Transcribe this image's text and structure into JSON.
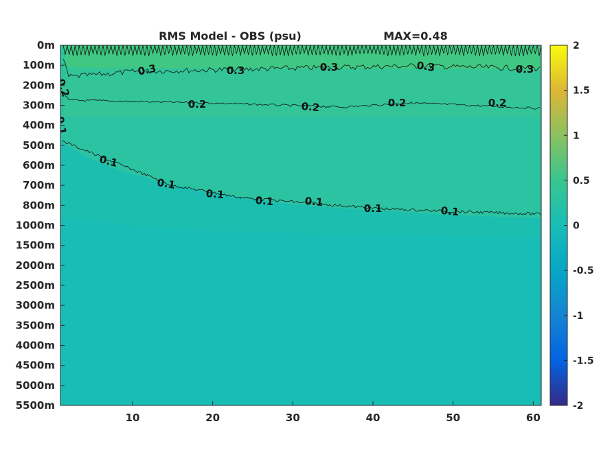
{
  "chart_data": {
    "type": "heatmap",
    "title": "RMS Model - OBS (psu)",
    "subtitle": "MAX=0.48",
    "xlabel": "",
    "ylabel": "",
    "x_ticks": [
      10,
      20,
      30,
      40,
      50,
      60
    ],
    "xlim": [
      1,
      61
    ],
    "y_ticks": [
      "0m",
      "100m",
      "200m",
      "300m",
      "400m",
      "500m",
      "600m",
      "700m",
      "800m",
      "1000m",
      "1500m",
      "2000m",
      "2500m",
      "3000m",
      "3500m",
      "4000m",
      "4500m",
      "5000m",
      "5500m"
    ],
    "colorbar": {
      "min": -2,
      "max": 2,
      "ticks": [
        "2",
        "1.5",
        "1",
        "0.5",
        "0",
        "-0.5",
        "-1",
        "-1.5",
        "-2"
      ],
      "colormap": "parula"
    },
    "field_regions": [
      {
        "depth_band": "0m-100m",
        "rms": 0.3
      },
      {
        "depth_band": "100m-300m",
        "rms": 0.25
      },
      {
        "depth_band": "300m-800m",
        "rms": 0.15
      },
      {
        "depth_band": "800m-1500m",
        "rms": 0.08
      },
      {
        "depth_band": "1500m-5500m",
        "rms": 0.02
      }
    ],
    "contours": [
      {
        "level": "0.3",
        "labels": [
          "0.3",
          "0.3",
          "0.3",
          "0.3",
          "0.3"
        ]
      },
      {
        "level": "0.2",
        "labels": [
          "0.2",
          "0.2",
          "0.2",
          "0.2",
          "0.2"
        ]
      },
      {
        "level": "0.1",
        "labels": [
          "0.1",
          "0.1",
          "0.1",
          "0.1",
          "0.1",
          "0.1",
          "0.1",
          "0.1"
        ]
      }
    ],
    "colors": {
      "surface_band": "#40c882",
      "upper_band": "#33c597",
      "mid_band": "#2cc3a2",
      "deep_band": "#1cbfaf",
      "abyss": "#18bdb6",
      "contour_line": "#111111"
    }
  }
}
